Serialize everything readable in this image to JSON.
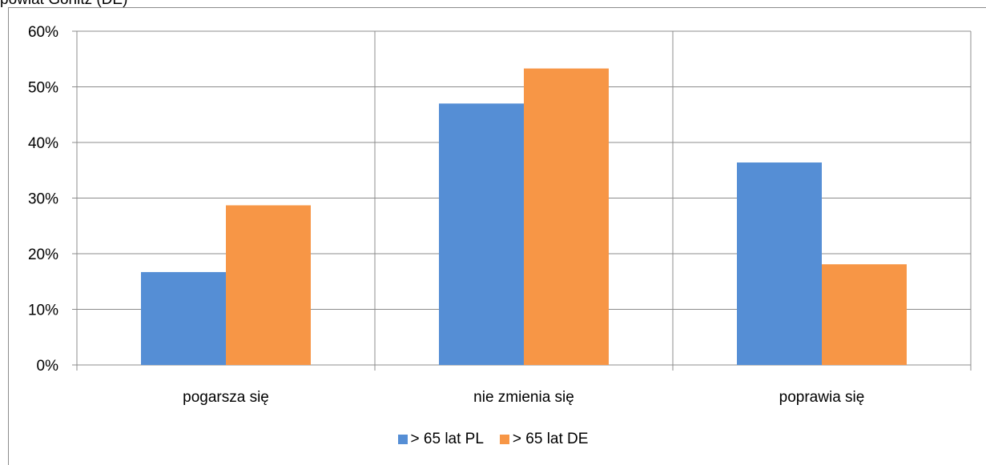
{
  "caption": "powiat Görlitz (DE)",
  "chart_data": {
    "type": "bar",
    "categories": [
      "pogarsza się",
      "nie zmienia się",
      "poprawia się"
    ],
    "series": [
      {
        "name": "> 65 lat PL",
        "values": [
          16.7,
          47.0,
          36.4
        ],
        "color": "#558ED5"
      },
      {
        "name": "> 65 lat DE",
        "values": [
          28.7,
          53.3,
          18.1
        ],
        "color": "#F79646"
      }
    ],
    "ylim": [
      0,
      60
    ],
    "yticks": [
      "0%",
      "10%",
      "20%",
      "30%",
      "40%",
      "50%",
      "60%"
    ],
    "grid": true,
    "legend": "bottom"
  }
}
